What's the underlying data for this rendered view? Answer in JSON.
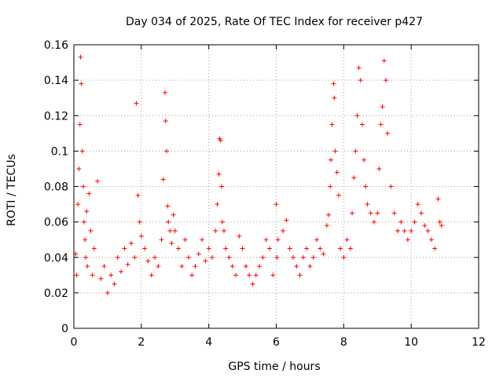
{
  "chart_data": {
    "type": "scatter",
    "title": "Day 034 of 2025, Rate Of TEC Index for receiver p427",
    "xlabel": "GPS time / hours",
    "ylabel": "ROTI / TECUs",
    "xlim": [
      0,
      12
    ],
    "ylim": [
      0,
      0.16
    ],
    "xticks": [
      0,
      2,
      4,
      6,
      8,
      10,
      12
    ],
    "xtick_labels": [
      "0",
      "2",
      "4",
      "6",
      "8",
      "10",
      "12"
    ],
    "yticks": [
      0,
      0.02,
      0.04,
      0.06,
      0.08,
      0.1,
      0.12,
      0.14,
      0.16
    ],
    "ytick_labels": [
      "0",
      "0.02",
      "0.04",
      "0.06",
      "0.08",
      "0.1",
      "0.12",
      "0.14",
      "0.16"
    ],
    "grid": true,
    "marker": "+",
    "color": "#ff0000",
    "series": [
      {
        "name": "ROTI",
        "x": [
          0.05,
          0.08,
          0.12,
          0.15,
          0.18,
          0.2,
          0.22,
          0.25,
          0.28,
          0.3,
          0.33,
          0.35,
          0.38,
          0.4,
          0.45,
          0.5,
          0.55,
          0.6,
          0.7,
          0.8,
          0.9,
          1.0,
          1.1,
          1.2,
          1.3,
          1.4,
          1.5,
          1.6,
          1.7,
          1.8,
          1.85,
          1.9,
          1.95,
          2.0,
          2.1,
          2.2,
          2.3,
          2.4,
          2.5,
          2.6,
          2.65,
          2.7,
          2.72,
          2.75,
          2.78,
          2.8,
          2.85,
          2.9,
          2.95,
          3.0,
          3.1,
          3.2,
          3.3,
          3.4,
          3.5,
          3.6,
          3.7,
          3.8,
          3.9,
          4.0,
          4.1,
          4.2,
          4.25,
          4.3,
          4.32,
          4.35,
          4.38,
          4.4,
          4.45,
          4.5,
          4.6,
          4.7,
          4.8,
          4.9,
          5.0,
          5.1,
          5.2,
          5.3,
          5.4,
          5.5,
          5.6,
          5.7,
          5.8,
          5.9,
          6.0,
          6.02,
          6.05,
          6.2,
          6.3,
          6.4,
          6.5,
          6.6,
          6.7,
          6.8,
          6.9,
          7.0,
          7.1,
          7.2,
          7.3,
          7.4,
          7.5,
          7.55,
          7.6,
          7.62,
          7.65,
          7.7,
          7.72,
          7.75,
          7.8,
          7.85,
          7.9,
          8.0,
          8.1,
          8.2,
          8.25,
          8.3,
          8.35,
          8.4,
          8.45,
          8.5,
          8.55,
          8.6,
          8.65,
          8.7,
          8.8,
          8.9,
          9.0,
          9.05,
          9.1,
          9.15,
          9.2,
          9.25,
          9.3,
          9.4,
          9.5,
          9.6,
          9.7,
          9.8,
          9.9,
          10.0,
          10.1,
          10.2,
          10.3,
          10.4,
          10.5,
          10.6,
          10.7,
          10.8,
          10.85,
          10.9
        ],
        "y": [
          0.042,
          0.03,
          0.07,
          0.09,
          0.115,
          0.153,
          0.138,
          0.1,
          0.08,
          0.06,
          0.05,
          0.04,
          0.066,
          0.035,
          0.076,
          0.055,
          0.03,
          0.045,
          0.083,
          0.028,
          0.035,
          0.02,
          0.03,
          0.025,
          0.04,
          0.032,
          0.045,
          0.036,
          0.048,
          0.04,
          0.127,
          0.075,
          0.06,
          0.052,
          0.045,
          0.038,
          0.03,
          0.04,
          0.035,
          0.05,
          0.084,
          0.133,
          0.117,
          0.1,
          0.069,
          0.06,
          0.055,
          0.048,
          0.064,
          0.055,
          0.045,
          0.035,
          0.05,
          0.04,
          0.03,
          0.035,
          0.042,
          0.05,
          0.038,
          0.045,
          0.04,
          0.055,
          0.07,
          0.087,
          0.107,
          0.106,
          0.08,
          0.06,
          0.055,
          0.045,
          0.04,
          0.035,
          0.03,
          0.052,
          0.045,
          0.035,
          0.03,
          0.025,
          0.03,
          0.035,
          0.04,
          0.05,
          0.045,
          0.03,
          0.07,
          0.04,
          0.05,
          0.055,
          0.061,
          0.045,
          0.04,
          0.035,
          0.03,
          0.04,
          0.045,
          0.035,
          0.04,
          0.05,
          0.045,
          0.042,
          0.058,
          0.064,
          0.08,
          0.095,
          0.115,
          0.138,
          0.13,
          0.1,
          0.088,
          0.075,
          0.045,
          0.04,
          0.05,
          0.045,
          0.065,
          0.085,
          0.1,
          0.12,
          0.147,
          0.14,
          0.115,
          0.095,
          0.08,
          0.07,
          0.065,
          0.06,
          0.065,
          0.09,
          0.115,
          0.125,
          0.151,
          0.14,
          0.11,
          0.08,
          0.065,
          0.055,
          0.06,
          0.055,
          0.05,
          0.055,
          0.06,
          0.07,
          0.065,
          0.058,
          0.055,
          0.05,
          0.045,
          0.073,
          0.06,
          0.058
        ]
      }
    ]
  }
}
